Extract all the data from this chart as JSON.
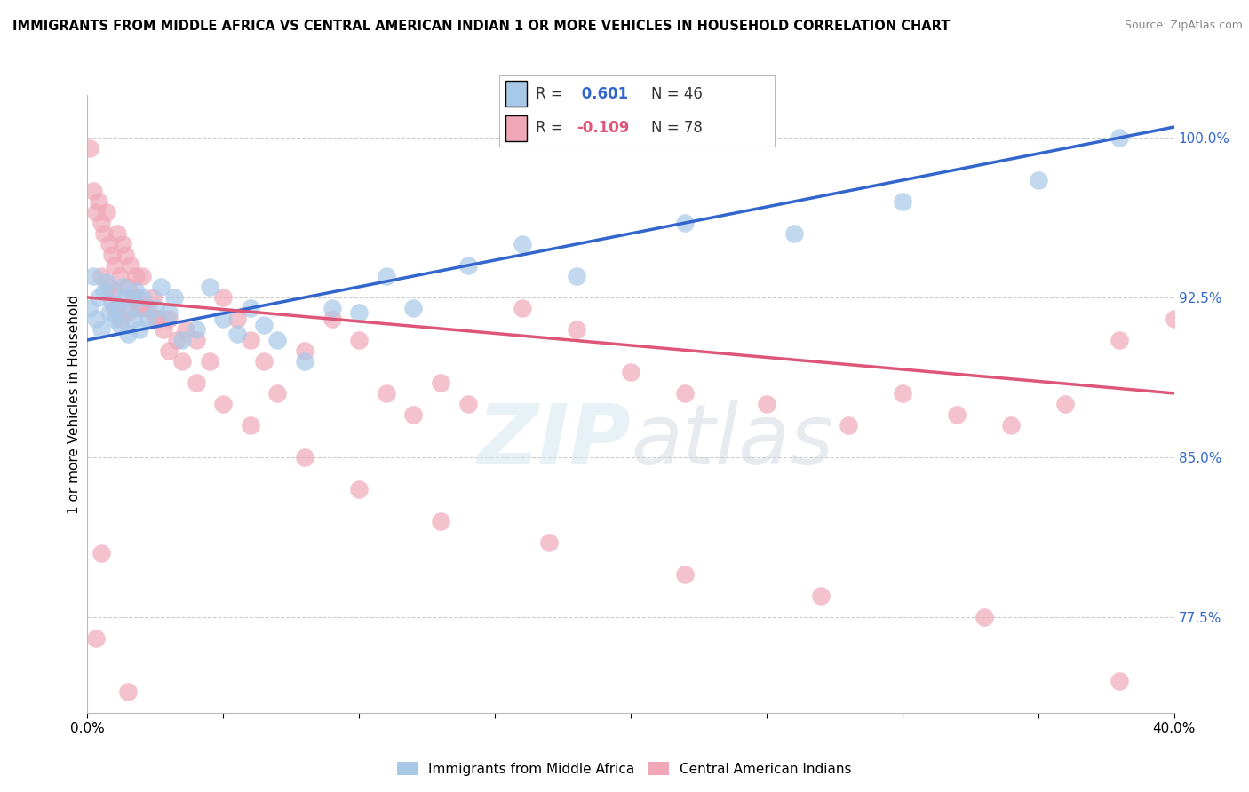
{
  "title": "IMMIGRANTS FROM MIDDLE AFRICA VS CENTRAL AMERICAN INDIAN 1 OR MORE VEHICLES IN HOUSEHOLD CORRELATION CHART",
  "source": "Source: ZipAtlas.com",
  "legend_blue_label": "Immigrants from Middle Africa",
  "legend_pink_label": "Central American Indians",
  "R_blue": 0.601,
  "N_blue": 46,
  "R_pink": -0.109,
  "N_pink": 78,
  "x_range": [
    0.0,
    0.4
  ],
  "y_range": [
    73.0,
    102.0
  ],
  "grid_color": "#cccccc",
  "blue_color": "#a8c8e8",
  "pink_color": "#f0a8b8",
  "blue_line_color": "#3366cc",
  "pink_line_color": "#dd5577",
  "ylabel_label": "1 or more Vehicles in Household",
  "blue_points_x": [
    0.001,
    0.002,
    0.003,
    0.004,
    0.005,
    0.006,
    0.007,
    0.008,
    0.009,
    0.01,
    0.011,
    0.012,
    0.013,
    0.014,
    0.015,
    0.016,
    0.017,
    0.018,
    0.019,
    0.02,
    0.022,
    0.025,
    0.027,
    0.03,
    0.032,
    0.035,
    0.04,
    0.045,
    0.05,
    0.055,
    0.06,
    0.065,
    0.07,
    0.08,
    0.09,
    0.1,
    0.11,
    0.12,
    0.14,
    0.16,
    0.18,
    0.22,
    0.26,
    0.3,
    0.35,
    0.38
  ],
  "blue_points_y": [
    92.0,
    93.5,
    91.5,
    92.5,
    91.0,
    92.8,
    93.2,
    91.8,
    92.3,
    91.5,
    92.0,
    91.2,
    93.0,
    92.5,
    90.8,
    92.0,
    91.5,
    92.8,
    91.0,
    92.5,
    91.5,
    92.0,
    93.0,
    91.8,
    92.5,
    90.5,
    91.0,
    93.0,
    91.5,
    90.8,
    92.0,
    91.2,
    90.5,
    89.5,
    92.0,
    91.8,
    93.5,
    92.0,
    94.0,
    95.0,
    93.5,
    96.0,
    95.5,
    97.0,
    98.0,
    100.0
  ],
  "pink_points_x": [
    0.001,
    0.002,
    0.003,
    0.004,
    0.005,
    0.006,
    0.007,
    0.008,
    0.009,
    0.01,
    0.011,
    0.012,
    0.013,
    0.014,
    0.015,
    0.016,
    0.017,
    0.018,
    0.019,
    0.02,
    0.022,
    0.024,
    0.026,
    0.028,
    0.03,
    0.033,
    0.036,
    0.04,
    0.045,
    0.05,
    0.055,
    0.06,
    0.065,
    0.07,
    0.08,
    0.09,
    0.1,
    0.11,
    0.12,
    0.13,
    0.14,
    0.16,
    0.18,
    0.2,
    0.22,
    0.25,
    0.28,
    0.3,
    0.32,
    0.34,
    0.36,
    0.38,
    0.4,
    0.003,
    0.005,
    0.008,
    0.01,
    0.012,
    0.015,
    0.018,
    0.02,
    0.025,
    0.03,
    0.035,
    0.04,
    0.05,
    0.06,
    0.08,
    0.1,
    0.13,
    0.17,
    0.22,
    0.27,
    0.33,
    0.38,
    0.005,
    0.01,
    0.015
  ],
  "pink_points_y": [
    99.5,
    97.5,
    96.5,
    97.0,
    96.0,
    95.5,
    96.5,
    95.0,
    94.5,
    94.0,
    95.5,
    93.5,
    95.0,
    94.5,
    93.0,
    94.0,
    92.5,
    93.5,
    92.0,
    93.5,
    92.0,
    92.5,
    91.5,
    91.0,
    91.5,
    90.5,
    91.0,
    90.5,
    89.5,
    92.5,
    91.5,
    90.5,
    89.5,
    88.0,
    90.0,
    91.5,
    90.5,
    88.0,
    87.0,
    88.5,
    87.5,
    92.0,
    91.0,
    89.0,
    88.0,
    87.5,
    86.5,
    88.0,
    87.0,
    86.5,
    87.5,
    90.5,
    91.5,
    76.5,
    80.5,
    93.0,
    92.0,
    91.5,
    91.8,
    92.5,
    92.0,
    91.5,
    90.0,
    89.5,
    88.5,
    87.5,
    86.5,
    85.0,
    83.5,
    82.0,
    81.0,
    79.5,
    78.5,
    77.5,
    74.5,
    93.5,
    92.8,
    74.0
  ]
}
